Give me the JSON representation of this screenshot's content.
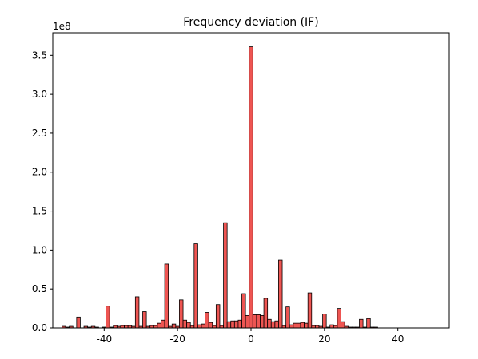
{
  "chart_data": {
    "type": "histogram",
    "title": "Frequency deviation (IF)",
    "y_offset_label": "1e8",
    "bins": [
      -51.5,
      -50.5,
      -49.5,
      -48.5,
      -47.5,
      -46.5,
      -45.5,
      -44.5,
      -43.5,
      -42.5,
      -41.5,
      -40.5,
      -39.5,
      -38.5,
      -37.5,
      -36.5,
      -35.5,
      -34.5,
      -33.5,
      -32.5,
      -31.5,
      -30.5,
      -29.5,
      -28.5,
      -27.5,
      -26.5,
      -25.5,
      -24.5,
      -23.5,
      -22.5,
      -21.5,
      -20.5,
      -19.5,
      -18.5,
      -17.5,
      -16.5,
      -15.5,
      -14.5,
      -13.5,
      -12.5,
      -11.5,
      -10.5,
      -9.5,
      -8.5,
      -7.5,
      -6.5,
      -5.5,
      -4.5,
      -3.5,
      -2.5,
      -1.5,
      -0.5,
      0.5,
      1.5,
      2.5,
      3.5,
      4.5,
      5.5,
      6.5,
      7.5,
      8.5,
      9.5,
      10.5,
      11.5,
      12.5,
      13.5,
      14.5,
      15.5,
      16.5,
      17.5,
      18.5,
      19.5,
      20.5,
      21.5,
      22.5,
      23.5,
      24.5,
      25.5,
      26.5,
      27.5,
      28.5,
      29.5,
      30.5,
      31.5,
      32.5,
      33.5,
      34.5,
      35.5,
      36.5,
      37.5,
      38.5,
      39.5,
      40.5,
      41.5,
      42.5,
      43.5,
      44.5,
      45.5,
      46.5,
      47.5,
      48.5,
      49.5
    ],
    "values": [
      2000000,
      1000000,
      2000000,
      0,
      14000000,
      0,
      2000000,
      1000000,
      2000000,
      1000000,
      0,
      1000000,
      28000000,
      1000000,
      3000000,
      2000000,
      3000000,
      3000000,
      3000000,
      2000000,
      40000000,
      2000000,
      21000000,
      2000000,
      3000000,
      3000000,
      6000000,
      10000000,
      82000000,
      2000000,
      5000000,
      2000000,
      36000000,
      10000000,
      7000000,
      3000000,
      108000000,
      4000000,
      5000000,
      20000000,
      7000000,
      3000000,
      30000000,
      3000000,
      135000000,
      8000000,
      9000000,
      9000000,
      10000000,
      44000000,
      16000000,
      361000000,
      17000000,
      17000000,
      16000000,
      38000000,
      11000000,
      8000000,
      9000000,
      87000000,
      3000000,
      27000000,
      4000000,
      6000000,
      6000000,
      7000000,
      6000000,
      45000000,
      3000000,
      3000000,
      2000000,
      18000000,
      1000000,
      4000000,
      3000000,
      25000000,
      8000000,
      2000000,
      1000000,
      1000000,
      1000000,
      11000000,
      1000000,
      12000000,
      1000000,
      1000000,
      0,
      0,
      0,
      0,
      0,
      0,
      0,
      0,
      0,
      0,
      0,
      0,
      0,
      0,
      0,
      0
    ],
    "color": "#ee5552",
    "edgecolor": "#000000",
    "xlim": [
      -54,
      54
    ],
    "xticks": [
      -40,
      -20,
      0,
      20,
      40
    ],
    "ylim": [
      0,
      379000000
    ],
    "yticks": [
      {
        "value": 0,
        "label": "0.0"
      },
      {
        "value": 50000000,
        "label": "0.5"
      },
      {
        "value": 100000000,
        "label": "1.0"
      },
      {
        "value": 150000000,
        "label": "1.5"
      },
      {
        "value": 200000000,
        "label": "2.0"
      },
      {
        "value": 250000000,
        "label": "2.5"
      },
      {
        "value": 300000000,
        "label": "3.0"
      },
      {
        "value": 350000000,
        "label": "3.5"
      }
    ],
    "grid": false
  }
}
